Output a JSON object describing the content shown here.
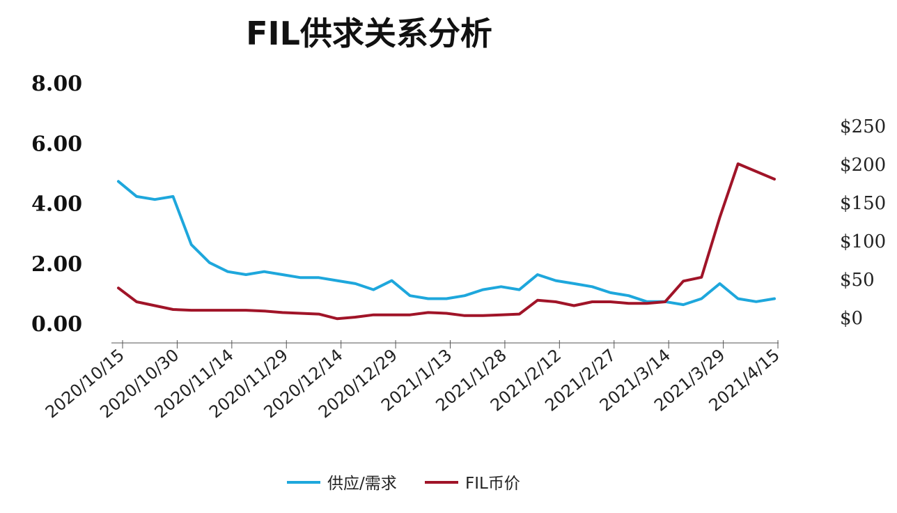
{
  "chart_data": {
    "type": "line",
    "title": "FIL供求关系分析",
    "x_tick_labels": [
      "2020/10/15",
      "2020/10/30",
      "2020/11/14",
      "2020/11/29",
      "2020/12/14",
      "2020/12/29",
      "2021/1/13",
      "2021/1/28",
      "2021/2/12",
      "2021/2/27",
      "2021/3/14",
      "2021/3/29",
      "2021/4/15"
    ],
    "y_left": {
      "ticks": [
        "8.00",
        "6.00",
        "4.00",
        "2.00",
        "0.00"
      ],
      "range": [
        0,
        8
      ]
    },
    "y_right": {
      "ticks": [
        "$250",
        "$200",
        "$150",
        "$100",
        "$50",
        "$0"
      ],
      "range": [
        0,
        250
      ]
    },
    "legend_position": "bottom",
    "grid": false,
    "x": [
      "2020/10/15",
      "2020/10/20",
      "2020/10/25",
      "2020/10/30",
      "2020/11/4",
      "2020/11/9",
      "2020/11/14",
      "2020/11/19",
      "2020/11/24",
      "2020/11/29",
      "2020/12/4",
      "2020/12/9",
      "2020/12/14",
      "2020/12/19",
      "2020/12/24",
      "2020/12/29",
      "2021/1/3",
      "2021/1/8",
      "2021/1/13",
      "2021/1/18",
      "2021/1/23",
      "2021/1/28",
      "2021/2/2",
      "2021/2/7",
      "2021/2/12",
      "2021/2/17",
      "2021/2/22",
      "2021/2/27",
      "2021/3/4",
      "2021/3/9",
      "2021/3/14",
      "2021/3/19",
      "2021/3/24",
      "2021/3/29",
      "2021/4/3",
      "2021/4/8",
      "2021/4/15"
    ],
    "series": [
      {
        "name": "供应/需求",
        "axis": "left",
        "color": "#1ea7dc",
        "values": [
          4.7,
          4.2,
          4.1,
          4.2,
          2.6,
          2.0,
          1.7,
          1.6,
          1.7,
          1.6,
          1.5,
          1.5,
          1.4,
          1.3,
          1.1,
          1.4,
          0.9,
          0.8,
          0.8,
          0.9,
          1.1,
          1.2,
          1.1,
          1.6,
          1.4,
          1.3,
          1.2,
          1.0,
          0.9,
          0.7,
          0.7,
          0.6,
          0.8,
          1.3,
          0.8,
          0.7,
          0.8
        ]
      },
      {
        "name": "FIL币价",
        "axis": "right",
        "color": "#a01428",
        "values": [
          38,
          20,
          15,
          10,
          9,
          9,
          9,
          9,
          8,
          6,
          5,
          4,
          -2,
          0,
          3,
          3,
          3,
          6,
          5,
          2,
          2,
          3,
          4,
          22,
          20,
          15,
          20,
          20,
          18,
          18,
          20,
          47,
          52,
          130,
          200,
          190,
          180
        ]
      }
    ]
  }
}
